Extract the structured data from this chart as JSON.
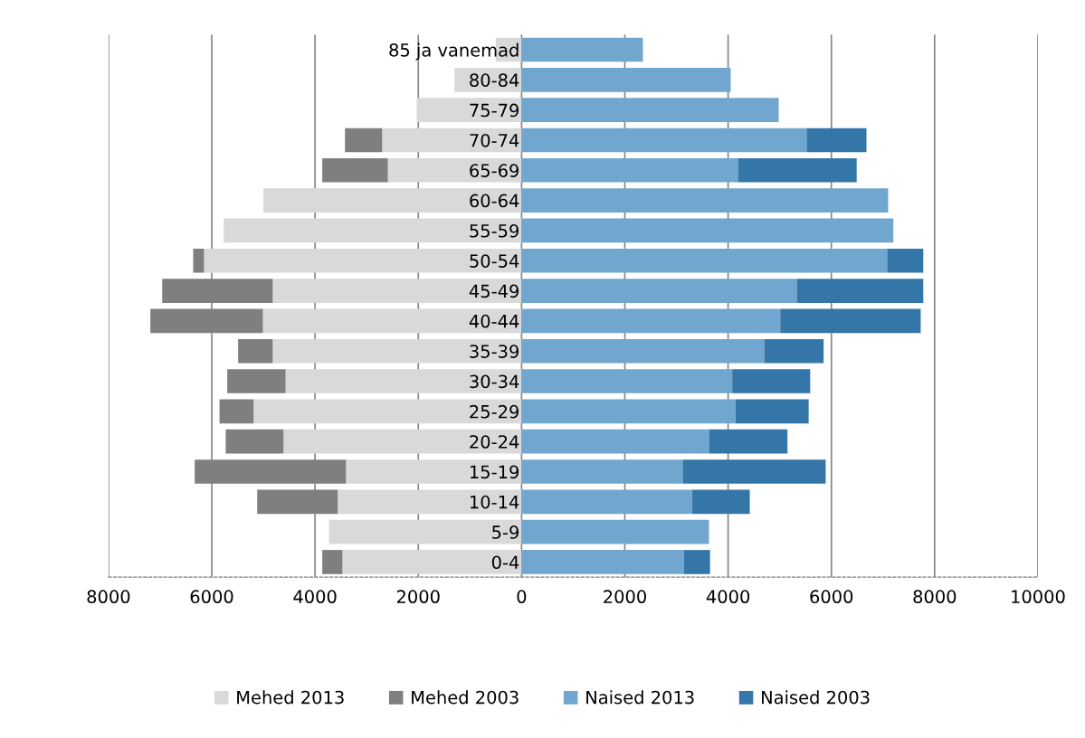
{
  "chart_data": {
    "type": "bar",
    "orientation": "horizontal",
    "stacked": true,
    "categories": [
      "85 ja vanemad",
      "80-84",
      "75-79",
      "70-74",
      "65-69",
      "60-64",
      "55-59",
      "50-54",
      "45-49",
      "40-44",
      "35-39",
      "30-34",
      "25-29",
      "20-24",
      "15-19",
      "10-14",
      "5-9",
      "0-4"
    ],
    "series": [
      {
        "name": "Mehed 2013",
        "color": "#d9d9d9",
        "values": [
          -500,
          -1300,
          -2030,
          -2700,
          -2590,
          -5000,
          -5770,
          -6150,
          -4820,
          -5010,
          -4820,
          -4570,
          -5190,
          -4610,
          -3400,
          -3560,
          -3730,
          -3470
        ]
      },
      {
        "name": "Mehed 2003",
        "color": "#7f7f7f",
        "values": [
          null,
          null,
          null,
          -720,
          -1270,
          null,
          null,
          -210,
          -2140,
          -2180,
          -670,
          -1130,
          -660,
          -1120,
          -2930,
          -1560,
          null,
          -390
        ]
      },
      {
        "name": "Naised 2013",
        "color": "#71a6ce",
        "values": [
          2350,
          4050,
          4980,
          5520,
          4190,
          7100,
          7200,
          7080,
          5330,
          5010,
          4700,
          4080,
          4140,
          3630,
          3120,
          3300,
          3630,
          3140
        ]
      },
      {
        "name": "Naised 2003",
        "color": "#3576a8",
        "values": [
          null,
          null,
          null,
          1160,
          2300,
          null,
          null,
          700,
          2450,
          2720,
          1150,
          1510,
          1420,
          1520,
          2770,
          1120,
          null,
          510
        ]
      }
    ],
    "xlim": [
      -8000,
      10000
    ],
    "xticks": [
      {
        "value": -8000,
        "label": "8000"
      },
      {
        "value": -6000,
        "label": "6000"
      },
      {
        "value": -4000,
        "label": "4000"
      },
      {
        "value": -2000,
        "label": "2000"
      },
      0,
      2000,
      4000,
      6000,
      8000,
      10000
    ],
    "grid": "x",
    "legend": "bottom"
  }
}
